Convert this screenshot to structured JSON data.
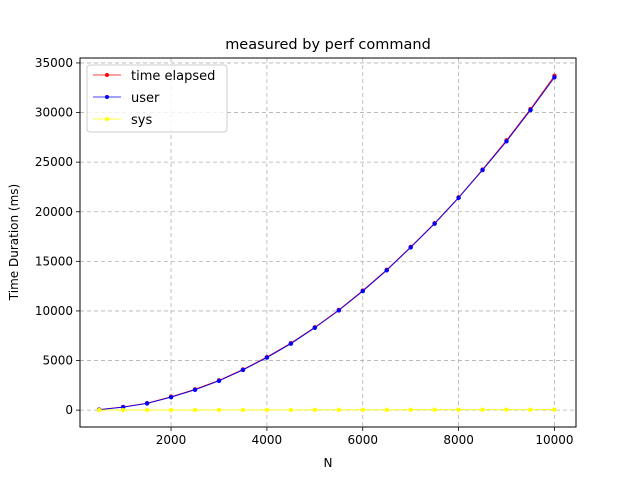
{
  "chart_data": {
    "type": "line",
    "title": "measured by perf command",
    "xlabel": "N",
    "ylabel": "Time Duration (ms)",
    "xlim": [
      100,
      10450
    ],
    "ylim": [
      -1700,
      35500
    ],
    "xticks": [
      2000,
      4000,
      6000,
      8000,
      10000
    ],
    "yticks": [
      0,
      5000,
      10000,
      15000,
      20000,
      25000,
      30000,
      35000
    ],
    "grid": true,
    "legend_position": "top-left",
    "x": [
      500,
      1000,
      1500,
      2000,
      2500,
      3000,
      3500,
      4000,
      4500,
      5000,
      5500,
      6000,
      6500,
      7000,
      7500,
      8000,
      8500,
      9000,
      9500,
      10000
    ],
    "series": [
      {
        "name": "time elapsed",
        "color": "#ff0000",
        "values": [
          60,
          320,
          700,
          1350,
          2100,
          3000,
          4100,
          5350,
          6750,
          8350,
          10100,
          12050,
          14150,
          16450,
          18850,
          21450,
          24250,
          27200,
          30350,
          33700
        ]
      },
      {
        "name": "user",
        "color": "#0000ff",
        "values": [
          50,
          300,
          680,
          1300,
          2050,
          2950,
          4050,
          5300,
          6700,
          8300,
          10050,
          12000,
          14100,
          16400,
          18800,
          21400,
          24200,
          27100,
          30250,
          33550
        ]
      },
      {
        "name": "sys",
        "color": "#ffff00",
        "values": [
          5,
          8,
          10,
          12,
          15,
          18,
          20,
          22,
          25,
          28,
          30,
          32,
          35,
          38,
          40,
          42,
          45,
          48,
          50,
          52
        ]
      }
    ]
  }
}
